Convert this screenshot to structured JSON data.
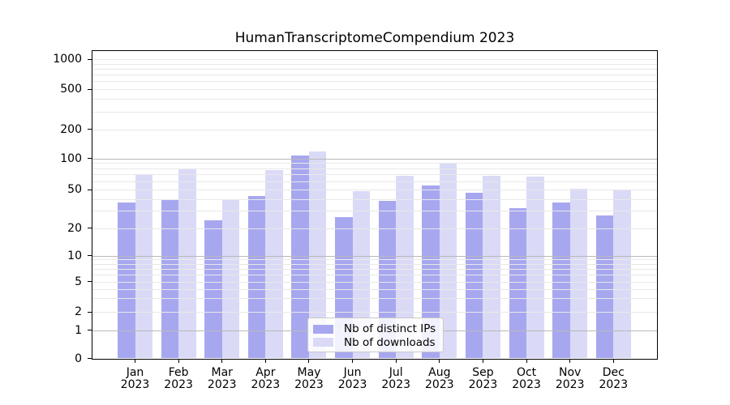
{
  "figure": {
    "background": "#ffffff"
  },
  "chart_data": {
    "type": "bar",
    "title": "HumanTranscriptomeCompendium 2023",
    "categories": [
      "Jan 2023",
      "Feb 2023",
      "Mar 2023",
      "Apr 2023",
      "May 2023",
      "Jun 2023",
      "Jul 2023",
      "Aug 2023",
      "Sep 2023",
      "Oct 2023",
      "Nov 2023",
      "Dec 2023"
    ],
    "series": [
      {
        "name": "Nb of distinct IPs",
        "color": "#a7a7f0",
        "values": [
          37,
          40,
          24,
          43,
          108,
          26,
          38,
          55,
          46,
          32,
          37,
          27
        ]
      },
      {
        "name": "Nb of downloads",
        "color": "#dadaf7",
        "values": [
          71,
          80,
          40,
          77,
          118,
          48,
          68,
          90,
          68,
          67,
          51,
          49
        ]
      }
    ],
    "xlabel": "",
    "ylabel": "",
    "yscale": "log above 1, linear 0-1",
    "ylim": [
      0,
      1258
    ],
    "y_ticks": [
      1000,
      500,
      200,
      100,
      50,
      20,
      10,
      5,
      2,
      1,
      0
    ],
    "y_minor_ticks": [
      3,
      4,
      6,
      7,
      8,
      9,
      30,
      40,
      60,
      70,
      80,
      90,
      300,
      400,
      600,
      700,
      800,
      900
    ],
    "grid": true,
    "legend_position": "lower center"
  },
  "colors": {
    "bar_ips": "#a7a7f0",
    "bar_downloads": "#dadaf7",
    "grid_minor": "#e8e8e8",
    "grid_major": "#b9b9b9",
    "spine": "#000000",
    "legend_border": "#c9c9c9"
  }
}
